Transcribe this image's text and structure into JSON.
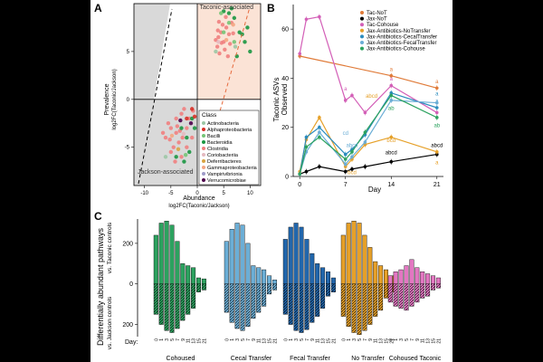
{
  "chart_data": [
    {
      "panel": "A",
      "type": "scatter",
      "xlabel": "Abundance",
      "xlabel2": "log2FC(Taconic/Jackson)",
      "ylabel": "Prevalence",
      "ylabel2": "log2FC(Taconic/Jackson)",
      "xticks": [
        "-10",
        "-5",
        "0",
        "5",
        "10"
      ],
      "yticks": [
        "5",
        "0",
        "-5"
      ],
      "xlim": [
        -12,
        12
      ],
      "ylim": [
        -9,
        10
      ],
      "region_labels": {
        "top": "Taconic-associated",
        "bottom": "Jackson-associated"
      },
      "legend_title": "Class",
      "legend": [
        {
          "name": "Actinobacteria",
          "color": "#9cc7a5"
        },
        {
          "name": "Alphaproteobacteria",
          "color": "#d73027"
        },
        {
          "name": "Bacilli",
          "color": "#74c476"
        },
        {
          "name": "Bacteroidia",
          "color": "#1a9641"
        },
        {
          "name": "Clostridia",
          "color": "#f08080"
        },
        {
          "name": "Coriobacteriia",
          "color": "#e4b9c0"
        },
        {
          "name": "Deferribacteres",
          "color": "#d9a441"
        },
        {
          "name": "Gammaproteobacteria",
          "color": "#f4a582"
        },
        {
          "name": "Vampirivibrionia",
          "color": "#9e9ac8"
        },
        {
          "name": "Verrucomicrobiae",
          "color": "#4d004b"
        }
      ],
      "points": [
        [
          4,
          6.5,
          4
        ],
        [
          4.5,
          7,
          4
        ],
        [
          5,
          6,
          4
        ],
        [
          5.5,
          7.5,
          4
        ],
        [
          6,
          6.8,
          4
        ],
        [
          6.5,
          8,
          4
        ],
        [
          3.8,
          5.5,
          4
        ],
        [
          4.2,
          4.8,
          4
        ],
        [
          5.2,
          5.2,
          4
        ],
        [
          4.8,
          7.8,
          4
        ],
        [
          6.2,
          5.8,
          4
        ],
        [
          3.5,
          6.2,
          4
        ],
        [
          4.1,
          8.1,
          4
        ],
        [
          5.8,
          4.5,
          4
        ],
        [
          6.8,
          6.9,
          4
        ],
        [
          4.6,
          5.9,
          4
        ],
        [
          5.4,
          8.6,
          4
        ],
        [
          3.9,
          7.2,
          4
        ],
        [
          6,
          9,
          3
        ],
        [
          7,
          8.5,
          3
        ],
        [
          8,
          7,
          3
        ],
        [
          9,
          6,
          3
        ],
        [
          10,
          5,
          3
        ],
        [
          7.5,
          4.5,
          3
        ],
        [
          5,
          9.2,
          3
        ],
        [
          8.5,
          6.8,
          3
        ],
        [
          6.5,
          9.5,
          3
        ],
        [
          9.5,
          7.5,
          3
        ],
        [
          5,
          7,
          2
        ],
        [
          6,
          8,
          2
        ],
        [
          7,
          6,
          2
        ],
        [
          4.5,
          9,
          2
        ],
        [
          4,
          6,
          5
        ],
        [
          5.5,
          6.2,
          7
        ],
        [
          6.8,
          7.8,
          7
        ],
        [
          3.5,
          5,
          0
        ],
        [
          7.2,
          5.5,
          0
        ],
        [
          -4,
          -2,
          4
        ],
        [
          -5,
          -3,
          4
        ],
        [
          -3,
          -1.5,
          4
        ],
        [
          -6,
          -4,
          4
        ],
        [
          -4.5,
          -5,
          4
        ],
        [
          -2,
          -3,
          4
        ],
        [
          -3.5,
          -4.5,
          4
        ],
        [
          -5.5,
          -2.5,
          4
        ],
        [
          -2.5,
          -1,
          4
        ],
        [
          -4,
          -3.5,
          4
        ],
        [
          -1.5,
          -2,
          4
        ],
        [
          -5,
          -5.5,
          4
        ],
        [
          -3,
          -6,
          4
        ],
        [
          -6.5,
          -3.5,
          4
        ],
        [
          -2,
          -5,
          4
        ],
        [
          -4.2,
          -6.5,
          4
        ],
        [
          -1,
          -4,
          4
        ],
        [
          -3.8,
          -2.8,
          4
        ],
        [
          -2.8,
          -4,
          4
        ],
        [
          -5.2,
          -4.2,
          4
        ],
        [
          -0.8,
          -1.2,
          4
        ],
        [
          -3.3,
          -3.3,
          4
        ],
        [
          -3,
          -3,
          3
        ],
        [
          -2,
          -4,
          3
        ],
        [
          -1,
          -2,
          3
        ],
        [
          -4,
          -6,
          3
        ],
        [
          -2.5,
          -6.5,
          3
        ],
        [
          -1.5,
          -5.5,
          3
        ],
        [
          -0.5,
          -3,
          3
        ],
        [
          -1,
          -1,
          1
        ],
        [
          -2,
          -2,
          1
        ],
        [
          -0.5,
          -1.8,
          1
        ],
        [
          -1.2,
          -2.5,
          9
        ],
        [
          -3.2,
          -2.2,
          9
        ],
        [
          -2.6,
          -3.6,
          5
        ],
        [
          -6,
          -6,
          0
        ],
        [
          -4.8,
          -3.8,
          7
        ],
        [
          -2.2,
          -5.8,
          2
        ],
        [
          -3.6,
          -5.2,
          6
        ]
      ]
    },
    {
      "panel": "B",
      "type": "line",
      "ylabel": "Taconic ASVs",
      "ylabel2": "Observed",
      "xlabel": "Day",
      "x_ticks": [
        "0",
        "7",
        "14",
        "21"
      ],
      "y_ticks": [
        "0",
        "20",
        "40",
        "60"
      ],
      "xlim": [
        -1,
        22
      ],
      "ylim": [
        0,
        70
      ],
      "series": [
        {
          "name": "Tac-NoT",
          "color": "#e07b39",
          "x": [
            0,
            14,
            21
          ],
          "values": [
            49,
            41,
            36
          ]
        },
        {
          "name": "Jax-NoT",
          "color": "#000000",
          "x": [
            0,
            1,
            3,
            7,
            8,
            10,
            14,
            21
          ],
          "values": [
            1,
            2,
            4,
            2,
            3,
            4,
            6,
            9
          ]
        },
        {
          "name": "Tac-Cohouse",
          "color": "#d35fb7",
          "x": [
            0,
            1,
            3,
            7,
            8,
            10,
            14,
            21
          ],
          "values": [
            50,
            64,
            65,
            31,
            33,
            26,
            37,
            26
          ]
        },
        {
          "name": "Jax-Antibiotics-NoTransfer",
          "color": "#e6a028",
          "x": [
            0,
            1,
            3,
            7,
            8,
            10,
            14,
            21
          ],
          "values": [
            2,
            15,
            24,
            4,
            7,
            13,
            16,
            10
          ]
        },
        {
          "name": "Jax-Antibiotics-CecalTransfer",
          "color": "#2b8cbe",
          "x": [
            0,
            1,
            3,
            7,
            8,
            10,
            14,
            21
          ],
          "values": [
            1,
            16,
            20,
            9,
            11,
            17,
            34,
            28
          ]
        },
        {
          "name": "Jax-Antibiotics-FecalTransfer",
          "color": "#6baed6",
          "x": [
            0,
            1,
            3,
            7,
            8,
            10,
            14,
            21
          ],
          "values": [
            1,
            10,
            18,
            5,
            8,
            14,
            31,
            30
          ]
        },
        {
          "name": "Jax-Antibiotics-Cohouse",
          "color": "#2ca25f",
          "x": [
            0,
            1,
            3,
            7,
            8,
            10,
            14,
            21
          ],
          "values": [
            1,
            12,
            16,
            7,
            10,
            18,
            33,
            24
          ]
        }
      ],
      "annotations": [
        {
          "text": "a",
          "x": 14,
          "y": 43,
          "color": "#e07b39"
        },
        {
          "text": "a",
          "x": 21,
          "y": 38,
          "color": "#e07b39"
        },
        {
          "text": "a",
          "x": 14,
          "y": 39,
          "color": "#d35fb7"
        },
        {
          "text": "a",
          "x": 7,
          "y": 35,
          "color": "#d35fb7"
        },
        {
          "text": "abcd",
          "x": 14,
          "y": 9,
          "color": "#000000"
        },
        {
          "text": "abcd",
          "x": 21,
          "y": 12,
          "color": "#000000"
        },
        {
          "text": "abcd",
          "x": 11,
          "y": 32,
          "color": "#e6a028"
        },
        {
          "text": "bcd",
          "x": 8,
          "y": 1,
          "color": "#e6a028"
        },
        {
          "text": "cd",
          "x": 7,
          "y": 17,
          "color": "#6baed6"
        },
        {
          "text": "abcd",
          "x": 8,
          "y": 12,
          "color": "#6baed6"
        },
        {
          "text": "ab",
          "x": 14,
          "y": 27,
          "color": "#2ca25f"
        },
        {
          "text": "a",
          "x": 21,
          "y": 33,
          "color": "#2b8cbe"
        },
        {
          "text": "ab",
          "x": 21,
          "y": 20,
          "color": "#2ca25f"
        },
        {
          "text": "a",
          "x": 21,
          "y": 30,
          "color": "#6baed6"
        },
        {
          "text": "bcd",
          "x": 14,
          "y": 14,
          "color": "#e6a028"
        },
        {
          "text": "a",
          "x": 21,
          "y": 5,
          "color": "#e6a028"
        }
      ]
    },
    {
      "panel": "C",
      "type": "bar",
      "ylabel": "Differentially abundant pathways",
      "ylabel_top": "vs. Taconic controls",
      "ylabel_bottom": "vs. Jackson controls",
      "y_ticks": [
        "200",
        "0",
        "200"
      ],
      "ylim": [
        -260,
        320
      ],
      "day_label": "Day:",
      "categories": [
        "0",
        "1",
        "3",
        "5",
        "7",
        "9",
        "11",
        "13",
        "15",
        "21"
      ],
      "groups": [
        {
          "name": "Cohoused",
          "color": "#2ca25f",
          "up": [
            240,
            300,
            310,
            290,
            210,
            100,
            90,
            80,
            30,
            25
          ],
          "down": [
            -150,
            -200,
            -230,
            -240,
            -220,
            -180,
            -150,
            -120,
            -40,
            -30
          ]
        },
        {
          "name": "Cecal Transfer",
          "color": "#6baed6",
          "up": [
            210,
            270,
            300,
            290,
            200,
            90,
            80,
            70,
            40,
            20
          ],
          "down": [
            -140,
            -190,
            -220,
            -230,
            -210,
            -170,
            -140,
            -110,
            -50,
            -30
          ]
        },
        {
          "name": "Fecal Transfer",
          "color": "#2166ac",
          "up": [
            220,
            280,
            300,
            280,
            220,
            150,
            100,
            80,
            60,
            30
          ],
          "down": [
            -150,
            -200,
            -230,
            -240,
            -225,
            -190,
            -160,
            -120,
            -60,
            -40
          ]
        },
        {
          "name": "No Transfer",
          "color": "#e6a028",
          "up": [
            240,
            300,
            310,
            300,
            240,
            180,
            110,
            90,
            70,
            40
          ],
          "down": [
            -160,
            -210,
            -240,
            -250,
            -230,
            -200,
            -160,
            -130,
            -70,
            -40
          ]
        },
        {
          "name": "Cohoused Taconic",
          "color": "#e377c2",
          "up": [
            40,
            60,
            70,
            90,
            120,
            80,
            60,
            50,
            40,
            30
          ],
          "down": [
            -90,
            -110,
            -120,
            -130,
            -110,
            -90,
            -70,
            -60,
            -30,
            -20
          ]
        }
      ]
    }
  ]
}
